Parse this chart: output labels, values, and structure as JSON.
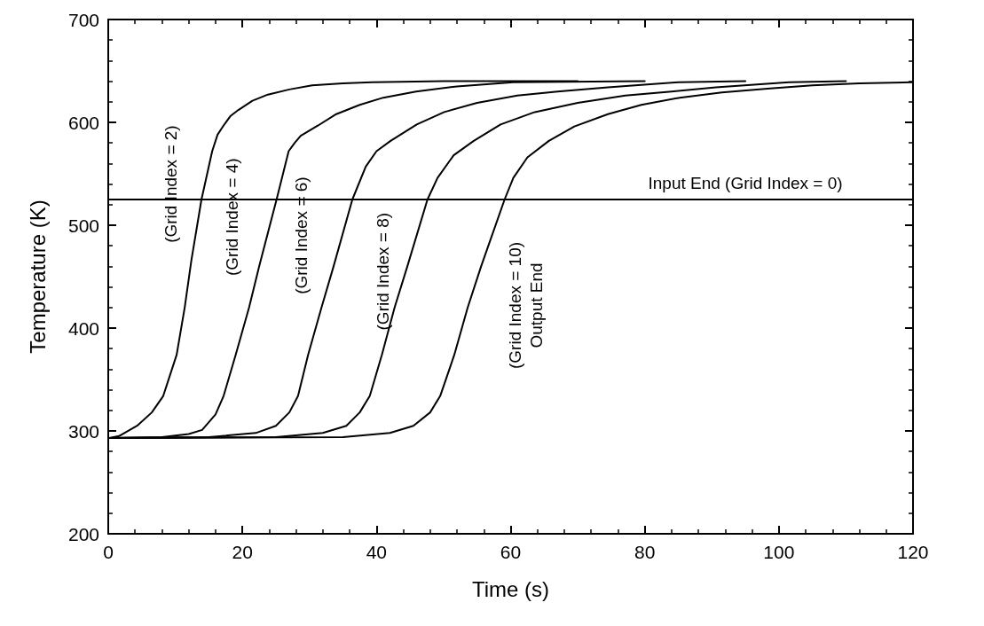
{
  "chart_data": {
    "type": "line",
    "xlabel": "Time (s)",
    "ylabel": "Temperature (K)",
    "xlim": [
      0,
      120
    ],
    "xticks": [
      0,
      20,
      40,
      60,
      80,
      100,
      120
    ],
    "ylim": [
      200,
      700
    ],
    "yticks": [
      200,
      300,
      400,
      500,
      600,
      700
    ],
    "grid": false,
    "legend": false,
    "marker": "none",
    "line_style": "solid",
    "series": [
      {
        "name": "Input End (Grid Index = 0)",
        "color": "#000000",
        "x": [
          0,
          120
        ],
        "values": [
          525,
          525
        ]
      },
      {
        "name": "(Grid Index = 2)",
        "color": "#000000",
        "x": [
          0,
          1.6,
          4.3,
          6.5,
          8.2,
          10.2,
          11.4,
          12.4,
          13.9,
          15.5,
          16.3,
          17.2,
          18.2,
          19.4,
          21.5,
          23.8,
          27,
          30.4,
          35,
          39.3,
          50,
          70
        ],
        "values": [
          293,
          295,
          305,
          318,
          334,
          374,
          420,
          466,
          525,
          572,
          588,
          597,
          606,
          612,
          621,
          627,
          632,
          636,
          638,
          639,
          640,
          640
        ]
      },
      {
        "name": "(Grid Index = 4)",
        "color": "#000000",
        "x": [
          0,
          8,
          12,
          14,
          16,
          17.2,
          19,
          21,
          22.5,
          25.1,
          26.9,
          27.8,
          28.7,
          31.3,
          34,
          37.5,
          41,
          45.9,
          52,
          60.4,
          80
        ],
        "values": [
          293,
          294,
          297,
          301,
          316,
          334,
          374,
          420,
          460,
          525,
          572,
          580,
          587,
          597,
          608,
          617,
          624,
          630,
          635,
          639,
          640
        ]
      },
      {
        "name": "(Grid Index = 6)",
        "color": "#000000",
        "x": [
          0,
          15,
          22,
          25,
          27,
          28.3,
          29.8,
          31.8,
          33.6,
          36.4,
          38.4,
          40,
          42.1,
          46,
          50.1,
          55,
          61,
          67,
          74.5,
          85,
          95
        ],
        "values": [
          293,
          294,
          298,
          305,
          318,
          334,
          374,
          420,
          460,
          525,
          557,
          572,
          582,
          598,
          610,
          619,
          626,
          630,
          634,
          639,
          640
        ]
      },
      {
        "name": "(Grid Index = 8)",
        "color": "#000000",
        "x": [
          0,
          25,
          32,
          35.5,
          37.5,
          39,
          40.8,
          42.7,
          44.6,
          47.6,
          49.1,
          51.5,
          54.5,
          58.5,
          63.6,
          70,
          77.1,
          84,
          90.6,
          101.5,
          110
        ],
        "values": [
          293,
          294,
          298,
          305,
          318,
          334,
          374,
          420,
          460,
          525,
          546,
          568,
          582,
          598,
          610,
          619,
          626,
          630,
          634,
          639,
          640
        ]
      },
      {
        "name": "(Grid Index = 10)\nOutput End",
        "color": "#000000",
        "x": [
          0,
          35,
          42,
          45.5,
          48,
          49.5,
          51.6,
          53.6,
          55.6,
          59.1,
          60.4,
          62.5,
          65.7,
          69.5,
          74.5,
          79.5,
          85.2,
          91.5,
          98.7,
          105,
          112,
          120
        ],
        "values": [
          293,
          294,
          298,
          305,
          318,
          334,
          374,
          420,
          460,
          525,
          546,
          566,
          582,
          596,
          608,
          617,
          624,
          629,
          633,
          636,
          638,
          639
        ]
      }
    ]
  }
}
